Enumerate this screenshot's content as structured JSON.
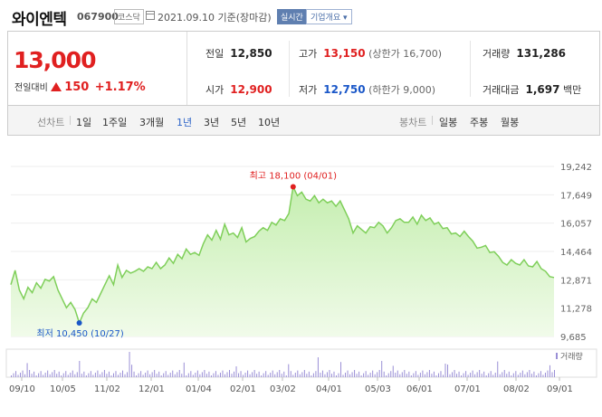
{
  "header": {
    "stock_name": "와이엔텍",
    "stock_code": "067900",
    "market": "코스닥",
    "date_text": "2021.09.10  기준(장마감)",
    "realtime_btn": "실시간",
    "company_info_btn": "기업개요"
  },
  "quote": {
    "price": "13,000",
    "change_label": "전일대비",
    "change_value": "150",
    "change_pct": "+1.17%",
    "prev_close_label": "전일",
    "prev_close": "12,850",
    "high_label": "고가",
    "high": "13,150",
    "upper_limit": "(상한가 16,700)",
    "volume_label": "거래량",
    "volume": "131,286",
    "open_label": "시가",
    "open": "12,900",
    "low_label": "저가",
    "low": "12,750",
    "lower_limit": "(하한가 9,000)",
    "amount_label": "거래대금",
    "amount": "1,697",
    "amount_unit": "백만"
  },
  "colors": {
    "up": "#e02020",
    "down": "#1a57c8",
    "line": "#7fcf5a",
    "fill_top": "#c5eeb0",
    "fill_bottom": "#f1fbea",
    "volume": "#9a8fd6"
  },
  "toolbar": {
    "line_chart_label": "선차트",
    "periods": [
      "1일",
      "1주일",
      "3개월",
      "1년",
      "3년",
      "5년",
      "10년"
    ],
    "selected_period": "1년",
    "candle_label": "봉차트",
    "candles": [
      "일봉",
      "주봉",
      "월봉"
    ]
  },
  "chart_data": {
    "type": "area",
    "y_ticks": [
      "19,242",
      "17,649",
      "16,057",
      "14,464",
      "12,871",
      "11,278",
      "9,685"
    ],
    "ylim": [
      9685,
      19242
    ],
    "x_ticks": [
      "09/10",
      "10/05",
      "11/02",
      "12/01",
      "01/04",
      "02/01",
      "03/02",
      "04/01",
      "05/03",
      "06/01",
      "07/01",
      "08/02",
      "09/01"
    ],
    "max_label": "최고 18,100 (04/01)",
    "min_label": "최저 10,450 (10/27)",
    "max_value": 18100,
    "min_value": 10450,
    "volume_legend": "거래량",
    "values": [
      12600,
      13400,
      12300,
      11800,
      12450,
      12150,
      12700,
      12400,
      12900,
      12800,
      13050,
      12300,
      11800,
      11300,
      11600,
      11200,
      10450,
      11000,
      11300,
      11800,
      11600,
      12100,
      12600,
      13100,
      12600,
      13700,
      13000,
      13400,
      13250,
      13350,
      13500,
      13350,
      13600,
      13500,
      13850,
      13500,
      13700,
      14100,
      13800,
      14300,
      14050,
      14600,
      14300,
      14400,
      14250,
      14900,
      15400,
      15100,
      15650,
      15150,
      16000,
      15400,
      15500,
      15250,
      15800,
      15000,
      15200,
      15300,
      15600,
      15800,
      15650,
      16100,
      15950,
      16300,
      16200,
      16600,
      18100,
      17600,
      17800,
      17400,
      17300,
      17600,
      17200,
      17400,
      17200,
      17300,
      17000,
      17300,
      16800,
      16300,
      15500,
      15900,
      15700,
      15500,
      15850,
      15800,
      16100,
      15900,
      15500,
      15800,
      16200,
      16300,
      16100,
      16100,
      16400,
      16000,
      16500,
      16200,
      16350,
      16000,
      16100,
      15750,
      15800,
      15450,
      15500,
      15300,
      15600,
      15300,
      15050,
      14650,
      14700,
      14800,
      14400,
      14450,
      14200,
      13850,
      13700,
      14000,
      13800,
      13700,
      14000,
      13650,
      13600,
      13900,
      13500,
      13350,
      13050,
      13000
    ]
  }
}
